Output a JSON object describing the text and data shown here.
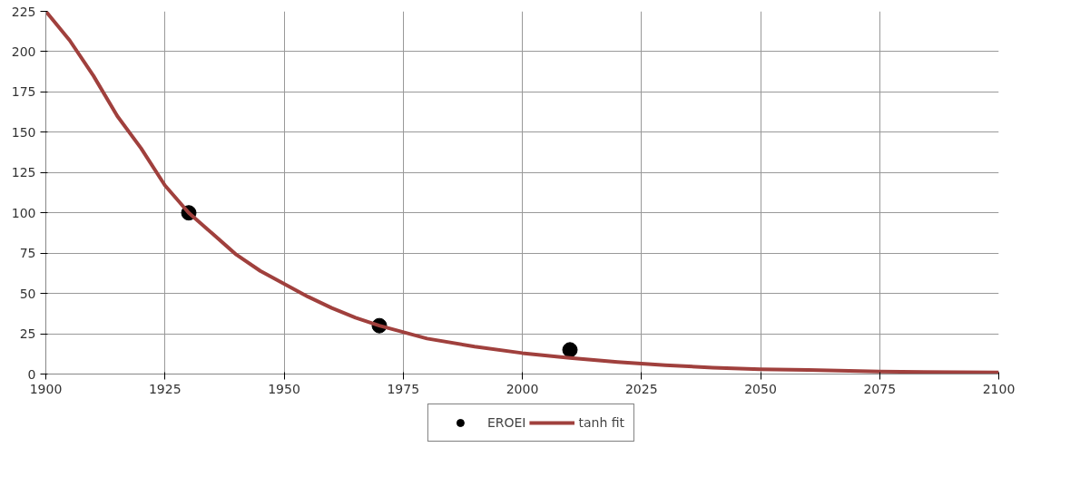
{
  "chart_data": {
    "type": "scatter",
    "xlim": [
      1900,
      2100
    ],
    "ylim": [
      0,
      225
    ],
    "xticks": [
      1900,
      1925,
      1950,
      1975,
      2000,
      2025,
      2050,
      2075,
      2100
    ],
    "yticks": [
      0,
      25,
      50,
      75,
      100,
      125,
      150,
      175,
      200,
      225
    ],
    "grid": true,
    "legend": "bottom",
    "series": [
      {
        "name": "EROEI",
        "marker": "circle",
        "color": "#000000",
        "x": [
          1930,
          1970,
          2010
        ],
        "values": [
          100,
          30,
          15
        ]
      },
      {
        "name": "tanh fit",
        "type": "line",
        "color": "#a0403d",
        "x": [
          1900,
          1905,
          1910,
          1915,
          1920,
          1925,
          1930,
          1935,
          1940,
          1945,
          1950,
          1955,
          1960,
          1965,
          1970,
          1980,
          1990,
          2000,
          2010,
          2020,
          2030,
          2040,
          2050,
          2060,
          2075,
          2100
        ],
        "values": [
          225,
          207,
          185,
          160,
          140,
          117,
          100,
          87,
          74,
          64,
          56,
          48,
          41,
          35,
          30,
          22,
          17,
          13,
          10,
          7.5,
          5.5,
          4,
          3,
          2.5,
          1.5,
          1
        ]
      }
    ]
  }
}
